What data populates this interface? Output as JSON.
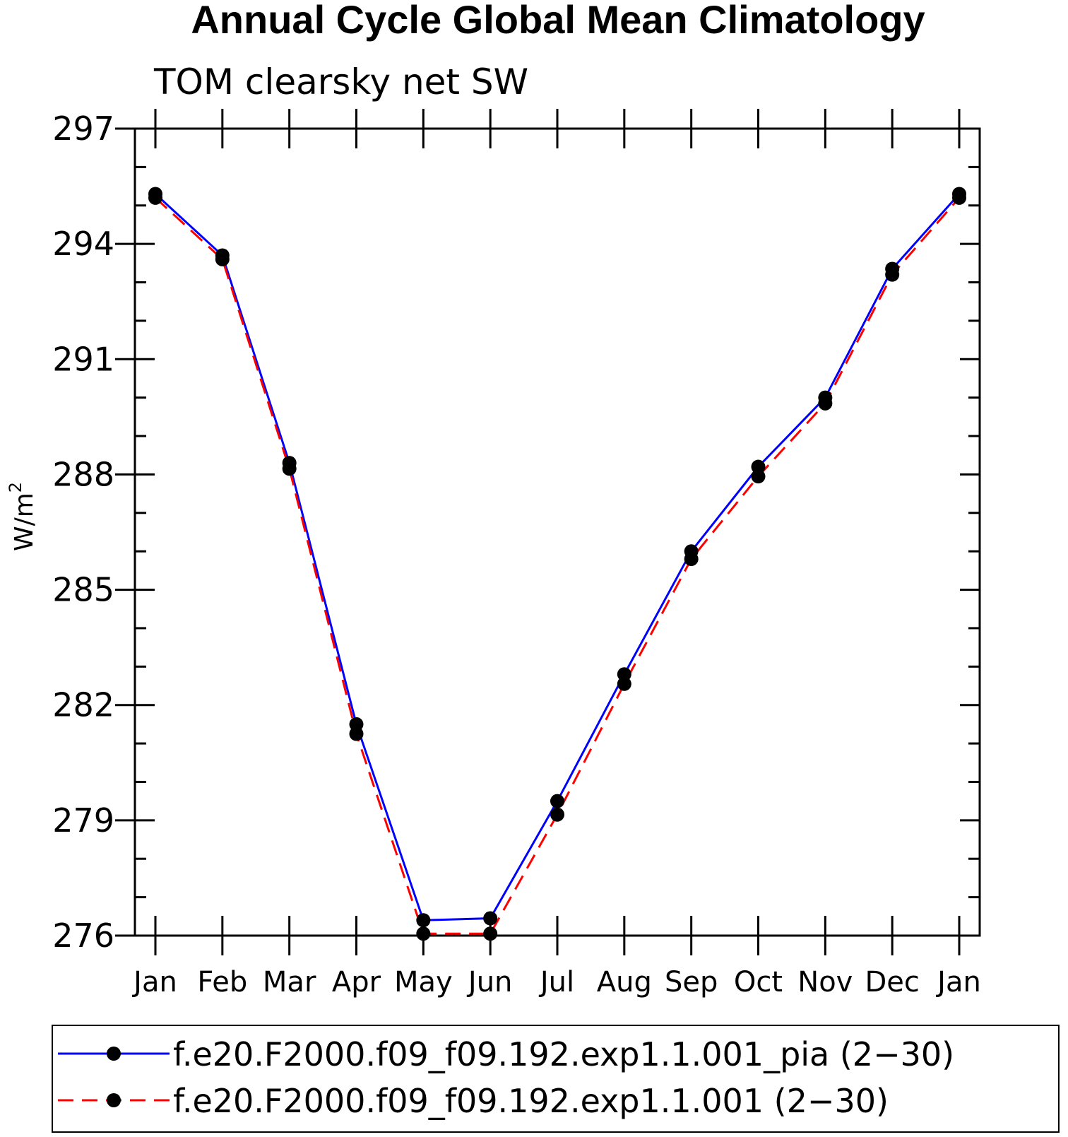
{
  "chart_data": {
    "type": "line",
    "title": "Annual Cycle Global Mean Climatology",
    "subtitle": "TOM clearsky net SW",
    "xlabel": "",
    "ylabel_base": "W/m",
    "ylabel_sup": "2",
    "categories": [
      "Jan",
      "Feb",
      "Mar",
      "Apr",
      "May",
      "Jun",
      "Jul",
      "Aug",
      "Sep",
      "Oct",
      "Nov",
      "Dec",
      "Jan"
    ],
    "ylim": [
      276,
      297
    ],
    "yticks": [
      "276",
      "279",
      "282",
      "285",
      "288",
      "291",
      "294",
      "297"
    ],
    "grid": false,
    "legend_position": "bottom",
    "series": [
      {
        "name": "f.e20.F2000.f09_f09.192.exp1.1.001_pia (2−30)",
        "color": "#0000ff",
        "dash": "solid",
        "marker": "filled-circle",
        "values": [
          295.3,
          293.7,
          288.3,
          281.5,
          276.4,
          276.45,
          279.5,
          282.8,
          286.0,
          288.2,
          290.0,
          293.35,
          295.3
        ]
      },
      {
        "name": "f.e20.F2000.f09_f09.192.exp1.1.001 (2−30)",
        "color": "#ff0000",
        "dash": "dashed",
        "marker": "filled-circle",
        "values": [
          295.2,
          293.6,
          288.15,
          281.25,
          276.05,
          276.05,
          279.15,
          282.55,
          285.8,
          287.95,
          289.85,
          293.2,
          295.2
        ]
      }
    ]
  }
}
